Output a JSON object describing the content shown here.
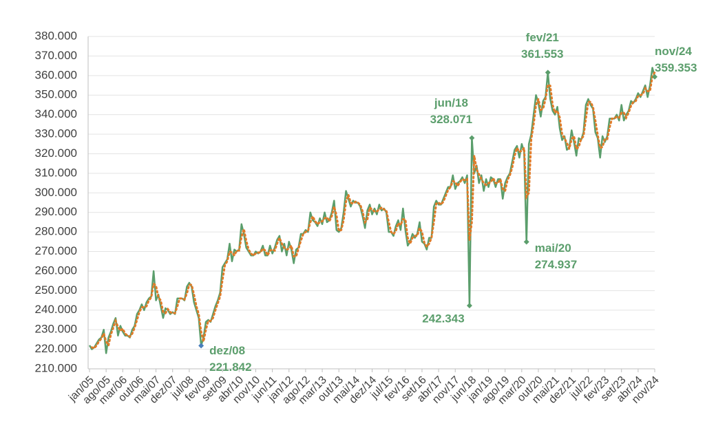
{
  "chart_data": {
    "type": "line",
    "categories": [
      "jan/05",
      null,
      null,
      null,
      null,
      null,
      null,
      "ago/05",
      null,
      null,
      null,
      null,
      null,
      null,
      "mar/06",
      null,
      null,
      null,
      null,
      null,
      null,
      "out/06",
      null,
      null,
      null,
      null,
      null,
      null,
      "mai/07",
      null,
      null,
      null,
      null,
      null,
      null,
      "dez/07",
      null,
      null,
      null,
      null,
      null,
      null,
      "jul/08",
      null,
      null,
      null,
      null,
      null,
      null,
      "fev/09",
      null,
      null,
      null,
      null,
      null,
      null,
      "set/09",
      null,
      null,
      null,
      null,
      null,
      null,
      "abr/10",
      null,
      null,
      null,
      null,
      null,
      null,
      "nov/10",
      null,
      null,
      null,
      null,
      null,
      null,
      "jun/11",
      null,
      null,
      null,
      null,
      null,
      null,
      "jan/12",
      null,
      null,
      null,
      null,
      null,
      null,
      "ago/12",
      null,
      null,
      null,
      null,
      null,
      null,
      "mar/13",
      null,
      null,
      null,
      null,
      null,
      null,
      "out/13",
      null,
      null,
      null,
      null,
      null,
      null,
      "mai/14",
      null,
      null,
      null,
      null,
      null,
      null,
      "dez/14",
      null,
      null,
      null,
      null,
      null,
      null,
      "jul/15",
      null,
      null,
      null,
      null,
      null,
      null,
      "fev/16",
      null,
      null,
      null,
      null,
      null,
      null,
      "set/16",
      null,
      null,
      null,
      null,
      null,
      null,
      "abr/17",
      null,
      null,
      null,
      null,
      null,
      null,
      "nov/17",
      null,
      null,
      null,
      null,
      null,
      null,
      "jun/18",
      null,
      null,
      null,
      null,
      null,
      null,
      "jan/19",
      null,
      null,
      null,
      null,
      null,
      null,
      "ago/19",
      null,
      null,
      null,
      null,
      null,
      null,
      "mar/20",
      null,
      null,
      null,
      null,
      null,
      null,
      "out/20",
      null,
      null,
      null,
      null,
      null,
      null,
      "mai/21",
      null,
      null,
      null,
      null,
      null,
      null,
      "dez/21",
      null,
      null,
      null,
      null,
      null,
      null,
      "jul/22",
      null,
      null,
      null,
      null,
      null,
      null,
      "fev/23",
      null,
      null,
      null,
      null,
      null,
      null,
      "set/23",
      null,
      null,
      null,
      null,
      null,
      null,
      "abr/24",
      null,
      null,
      null,
      null,
      null,
      null,
      "nov/24"
    ],
    "series": [
      {
        "color": "#5b9e6c",
        "values": [
          222000,
          220000,
          221000,
          223000,
          225000,
          226000,
          230000,
          218000,
          226000,
          229000,
          233000,
          236000,
          227000,
          232000,
          229000,
          227000,
          227000,
          226000,
          230000,
          232000,
          238000,
          240000,
          243000,
          240000,
          244000,
          246000,
          247000,
          260000,
          245000,
          248000,
          242000,
          236000,
          241000,
          240000,
          238000,
          239000,
          238000,
          246000,
          246000,
          246000,
          245000,
          252000,
          254000,
          252000,
          244000,
          240000,
          236000,
          221842,
          226000,
          234000,
          235000,
          234000,
          238000,
          242000,
          245000,
          249000,
          262000,
          264000,
          266000,
          274000,
          265000,
          271000,
          270000,
          271000,
          284000,
          279000,
          272000,
          270000,
          268000,
          268000,
          270000,
          269000,
          270000,
          273000,
          268000,
          268000,
          273000,
          269000,
          272000,
          276000,
          278000,
          270000,
          274000,
          268000,
          275000,
          271000,
          264000,
          271000,
          272000,
          279000,
          279000,
          281000,
          280000,
          290000,
          286000,
          285000,
          283000,
          287000,
          284000,
          290000,
          285000,
          286000,
          290000,
          296000,
          281000,
          280000,
          282000,
          290000,
          301000,
          297000,
          293000,
          296000,
          295000,
          295000,
          293000,
          288000,
          282000,
          291000,
          294000,
          289000,
          292000,
          289000,
          294000,
          291000,
          292000,
          290000,
          280000,
          280000,
          278000,
          283000,
          286000,
          281000,
          292000,
          281000,
          273000,
          275000,
          279000,
          277000,
          279000,
          285000,
          275000,
          274000,
          271000,
          277000,
          277000,
          293000,
          296000,
          294000,
          294000,
          297000,
          300000,
          303000,
          303000,
          309000,
          302000,
          305000,
          306000,
          308000,
          305000,
          309000,
          242343,
          328071,
          310000,
          314000,
          305000,
          309000,
          301000,
          307000,
          303000,
          308000,
          307000,
          303000,
          307000,
          307000,
          297000,
          305000,
          308000,
          310000,
          316000,
          322000,
          324000,
          318000,
          325000,
          321000,
          274937,
          325000,
          330000,
          340000,
          350000,
          346000,
          339000,
          347000,
          349000,
          361553,
          348000,
          342000,
          340000,
          344000,
          333000,
          327000,
          329000,
          322000,
          323000,
          332000,
          326000,
          319000,
          328000,
          327000,
          331000,
          345000,
          348000,
          345000,
          343000,
          331000,
          328000,
          318000,
          329000,
          326000,
          329000,
          338000,
          338000,
          338000,
          340000,
          337000,
          345000,
          337000,
          340000,
          342000,
          347000,
          346000,
          348000,
          351000,
          349000,
          352000,
          355000,
          349000,
          355000,
          364000,
          359353
        ]
      }
    ],
    "trendline": {
      "type": "moving_average",
      "period": 2,
      "color": "#e07b28"
    },
    "ylim": [
      210000,
      380000
    ],
    "yticks": [
      {
        "value": 210000,
        "label": "210.000"
      },
      {
        "value": 220000,
        "label": "220.000"
      },
      {
        "value": 230000,
        "label": "230.000"
      },
      {
        "value": 240000,
        "label": "240.000"
      },
      {
        "value": 250000,
        "label": "250.000"
      },
      {
        "value": 260000,
        "label": "260.000"
      },
      {
        "value": 270000,
        "label": "270.000"
      },
      {
        "value": 280000,
        "label": "280.000"
      },
      {
        "value": 290000,
        "label": "290.000"
      },
      {
        "value": 300000,
        "label": "300.000"
      },
      {
        "value": 310000,
        "label": "310.000"
      },
      {
        "value": 320000,
        "label": "320.000"
      },
      {
        "value": 330000,
        "label": "330.000"
      },
      {
        "value": 340000,
        "label": "340.000"
      },
      {
        "value": 350000,
        "label": "350.000"
      },
      {
        "value": 360000,
        "label": "360.000"
      },
      {
        "value": 370000,
        "label": "370.000"
      },
      {
        "value": 380000,
        "label": "380.000"
      }
    ],
    "grid": true,
    "annotations": [
      {
        "index": 47,
        "text": "dez/08",
        "value_label": "221.842"
      },
      {
        "index": 161,
        "text": "jun/18",
        "value_label": "328.071"
      },
      {
        "index": 160,
        "value_label": "242.343"
      },
      {
        "index": 193,
        "text": "fev/21",
        "value_label": "361.553"
      },
      {
        "index": 184,
        "text": "mai/20",
        "value_label": "274.937"
      },
      {
        "index": 238,
        "text": "nov/24",
        "value_label": "359.353"
      }
    ]
  }
}
